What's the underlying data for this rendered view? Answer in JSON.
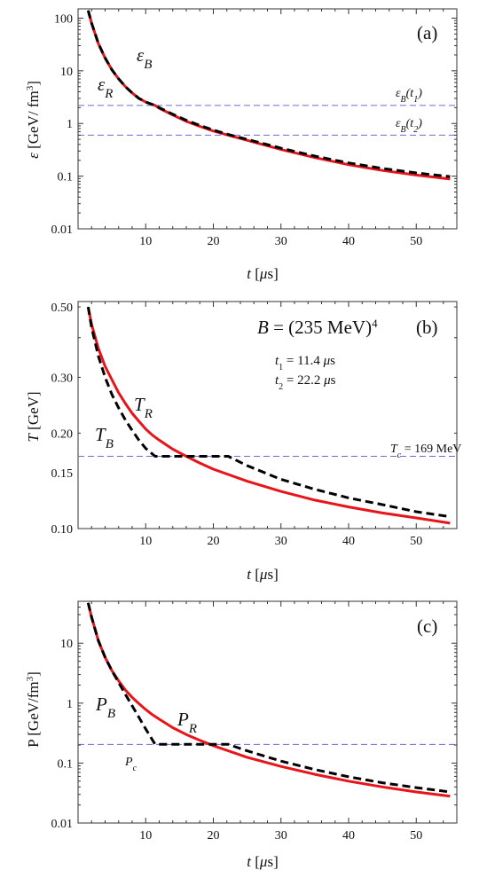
{
  "chart_data": [
    {
      "id": "a",
      "type": "line",
      "panel_tag": "(a)",
      "xlabel": "t [μs]",
      "ylabel": "ε [GeV/ fm³]",
      "xlim": [
        0,
        56
      ],
      "ylim": [
        0.01,
        150
      ],
      "yscale": "log",
      "xticks": [
        10,
        20,
        30,
        40,
        50
      ],
      "yticks": [
        0.01,
        0.1,
        1,
        10,
        100
      ],
      "ytick_labels": [
        "0.01",
        "0.1",
        "1",
        "10",
        "100"
      ],
      "series": [
        {
          "name": "ε_R",
          "role": "R",
          "color": "#e8141a",
          "dash": "solid",
          "x": [
            1.5,
            2,
            3,
            4,
            5,
            6,
            7,
            8,
            9,
            10,
            11.4,
            12,
            14,
            16,
            18,
            20,
            22.2,
            25,
            30,
            35,
            40,
            45,
            50,
            55
          ],
          "y": [
            140,
            80,
            33,
            17.5,
            10.5,
            7.0,
            5.0,
            3.8,
            3.0,
            2.55,
            2.2,
            1.95,
            1.45,
            1.1,
            0.88,
            0.72,
            0.6,
            0.48,
            0.32,
            0.225,
            0.165,
            0.128,
            0.105,
            0.088
          ]
        },
        {
          "name": "ε_B",
          "role": "B",
          "color": "#000000",
          "dash": "dashed",
          "x": [
            1.5,
            2,
            3,
            4,
            5,
            6,
            7,
            8,
            9,
            10,
            11.4,
            12,
            14,
            16,
            18,
            20,
            22.2,
            25,
            30,
            35,
            40,
            45,
            50,
            55
          ],
          "y": [
            140,
            80,
            33,
            17.5,
            10.5,
            7.0,
            5.0,
            3.8,
            3.0,
            2.55,
            2.2,
            2.0,
            1.5,
            1.15,
            0.92,
            0.75,
            0.62,
            0.5,
            0.34,
            0.24,
            0.178,
            0.14,
            0.115,
            0.098
          ]
        }
      ],
      "reference_lines": [
        {
          "y": 2.2,
          "label": "ε_B(t_1)"
        },
        {
          "y": 0.6,
          "label": "ε_B(t_2)"
        }
      ],
      "curve_labels": [
        {
          "text": "ε_B",
          "x": 8.6,
          "y": 32
        },
        {
          "text": "ε_R",
          "x": 5.2,
          "y": 6.3
        }
      ],
      "ref_line_color": "#6b6bdd"
    },
    {
      "id": "b",
      "type": "line",
      "panel_tag": "(b)",
      "xlabel": "t [μs]",
      "ylabel": "T [GeV]",
      "xlim": [
        0,
        56
      ],
      "ylim": [
        0.1,
        0.52
      ],
      "yscale": "log",
      "xticks": [
        10,
        20,
        30,
        40,
        50
      ],
      "yticks": [
        0.1,
        0.15,
        0.2,
        0.3,
        0.5
      ],
      "ytick_labels": [
        "0.10",
        "0.15",
        "0.20",
        "0.30",
        "0.50"
      ],
      "series": [
        {
          "name": "T_R",
          "role": "R",
          "color": "#e8141a",
          "dash": "solid",
          "x": [
            1.5,
            2,
            3,
            4,
            5,
            6,
            7,
            8,
            9,
            10,
            11,
            12,
            14,
            16,
            18,
            20,
            25,
            30,
            35,
            40,
            45,
            50,
            55
          ],
          "y": [
            0.5,
            0.44,
            0.37,
            0.325,
            0.295,
            0.268,
            0.248,
            0.231,
            0.218,
            0.206,
            0.197,
            0.19,
            0.178,
            0.169,
            0.161,
            0.154,
            0.141,
            0.131,
            0.123,
            0.117,
            0.112,
            0.108,
            0.104
          ]
        },
        {
          "name": "T_B",
          "role": "B",
          "color": "#000000",
          "dash": "dashed",
          "x": [
            1.5,
            2,
            3,
            4,
            5,
            6,
            7,
            8,
            9,
            10,
            11.4,
            22.2,
            25,
            30,
            35,
            40,
            45,
            50,
            55
          ],
          "y": [
            0.5,
            0.43,
            0.35,
            0.3,
            0.265,
            0.24,
            0.22,
            0.204,
            0.19,
            0.179,
            0.169,
            0.169,
            0.158,
            0.143,
            0.133,
            0.125,
            0.119,
            0.113,
            0.109
          ]
        }
      ],
      "reference_lines": [
        {
          "y": 0.169,
          "label": "T_c = 169 MeV"
        }
      ],
      "curve_labels": [
        {
          "text": "T_R",
          "x": 9.3,
          "y": 0.231
        },
        {
          "text": "T_B",
          "x": 5.2,
          "y": 0.19
        }
      ],
      "ref_line_color": "#6b6bdd",
      "annotations": {
        "bag_constant": "B = (235 MeV)⁴",
        "t1": "t₁ = 11.4 μs",
        "t2": "t₂ = 22.2 μs"
      }
    },
    {
      "id": "c",
      "type": "line",
      "panel_tag": "(c)",
      "xlabel": "t [μs]",
      "ylabel": "P [GeV/fm³]",
      "xlim": [
        0,
        56
      ],
      "ylim": [
        0.01,
        50
      ],
      "yscale": "log",
      "xticks": [
        10,
        20,
        30,
        40,
        50
      ],
      "yticks": [
        0.01,
        0.1,
        1,
        10
      ],
      "ytick_labels": [
        "0.01",
        "0.1",
        "1",
        "10"
      ],
      "series": [
        {
          "name": "P_R",
          "role": "R",
          "color": "#e8141a",
          "dash": "solid",
          "x": [
            1.5,
            2,
            3,
            4,
            5,
            6,
            7,
            8,
            9,
            10,
            11,
            12,
            14,
            16,
            18,
            20,
            25,
            30,
            35,
            40,
            45,
            50,
            55
          ],
          "y": [
            47,
            27,
            11,
            5.8,
            3.5,
            2.35,
            1.65,
            1.25,
            0.98,
            0.78,
            0.64,
            0.54,
            0.39,
            0.3,
            0.24,
            0.195,
            0.125,
            0.088,
            0.065,
            0.05,
            0.04,
            0.033,
            0.028
          ]
        },
        {
          "name": "P_B",
          "role": "B",
          "color": "#000000",
          "dash": "dashed",
          "x": [
            1.5,
            2,
            3,
            4,
            5,
            6,
            7,
            8,
            9,
            10,
            11.4,
            22.2,
            25,
            30,
            35,
            40,
            45,
            50,
            55
          ],
          "y": [
            47,
            27,
            11,
            5.8,
            3.5,
            2.2,
            1.4,
            0.9,
            0.58,
            0.37,
            0.205,
            0.205,
            0.16,
            0.108,
            0.078,
            0.059,
            0.047,
            0.039,
            0.033
          ]
        }
      ],
      "reference_lines": [
        {
          "y": 0.205,
          "label": ""
        }
      ],
      "curve_labels": [
        {
          "text": "P_B",
          "x": 5.2,
          "y": 0.85
        },
        {
          "text": "P_R",
          "x": 15.5,
          "y": 0.38
        }
      ],
      "ref_line_color": "#6b6bdd",
      "annotations": {
        "pc": "P_c"
      }
    }
  ]
}
